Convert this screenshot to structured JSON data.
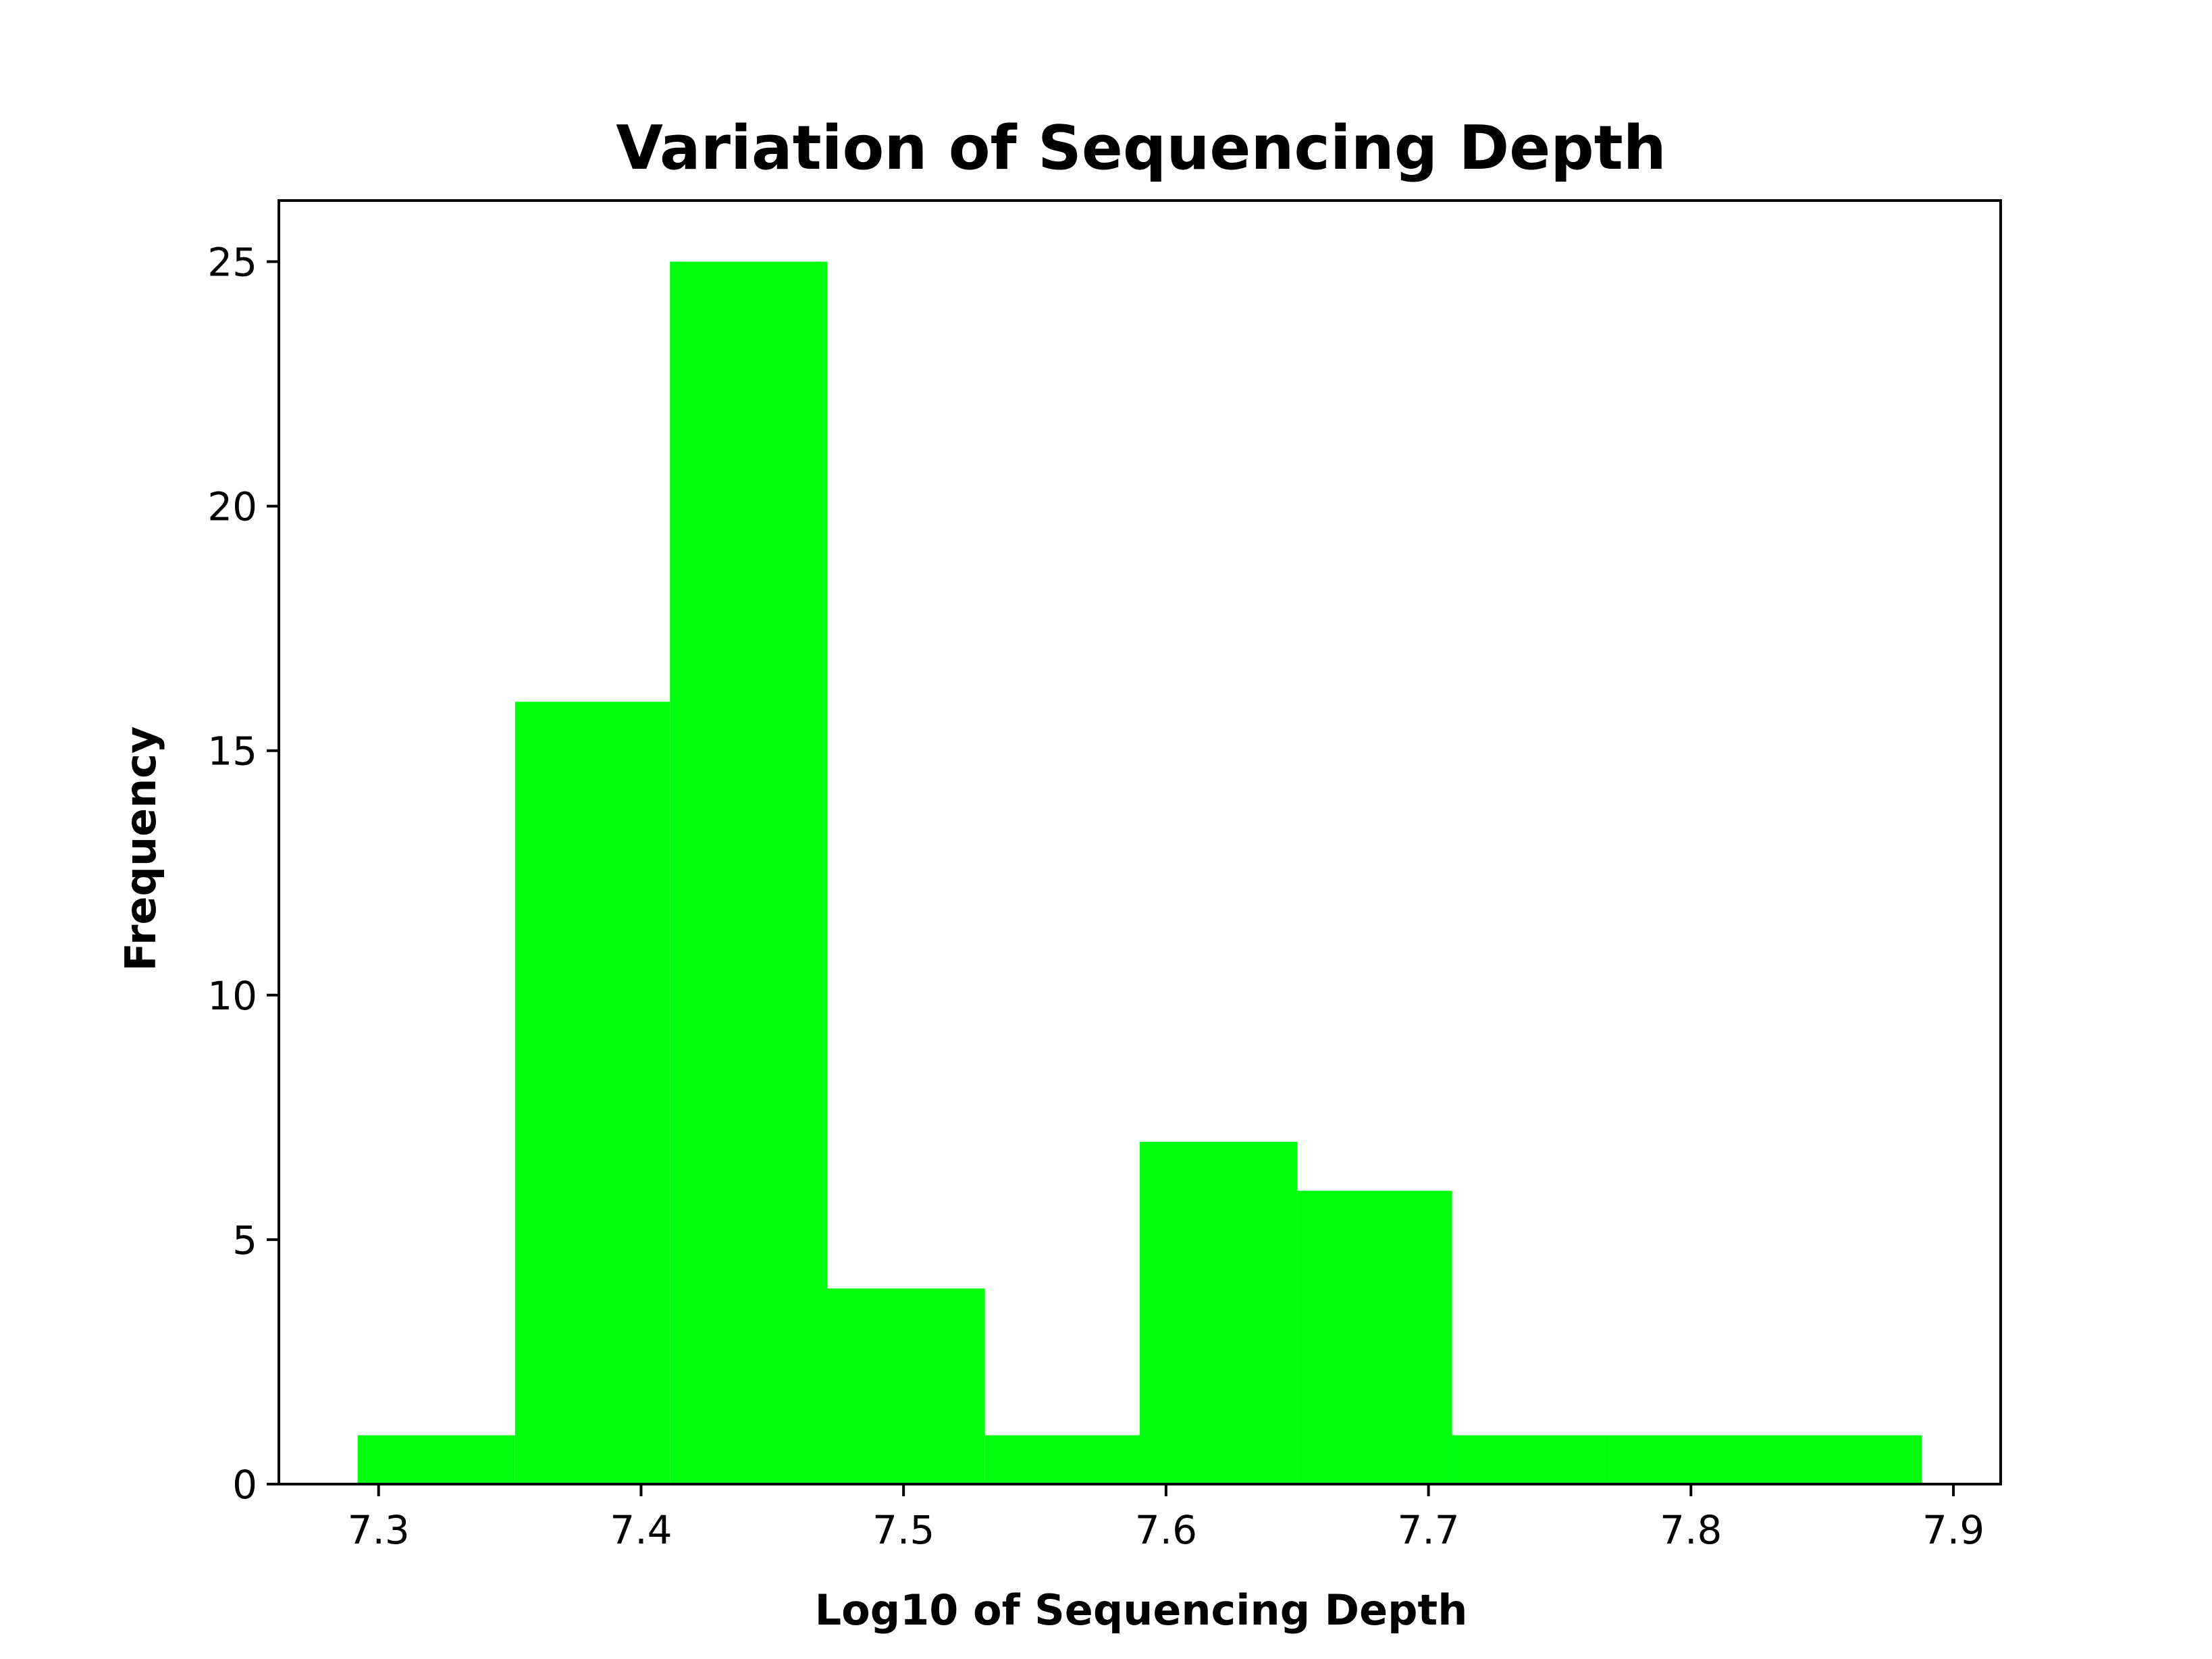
{
  "chart_data": {
    "type": "bar",
    "title": "Variation of Sequencing Depth",
    "xlabel": "Log10 of Sequencing Depth",
    "ylabel": "Frequency",
    "bins": [
      {
        "x0": 7.292,
        "x1": 7.352,
        "count": 1
      },
      {
        "x0": 7.352,
        "x1": 7.411,
        "count": 16
      },
      {
        "x0": 7.411,
        "x1": 7.471,
        "count": 25
      },
      {
        "x0": 7.471,
        "x1": 7.531,
        "count": 4
      },
      {
        "x0": 7.531,
        "x1": 7.59,
        "count": 1
      },
      {
        "x0": 7.59,
        "x1": 7.65,
        "count": 7
      },
      {
        "x0": 7.65,
        "x1": 7.709,
        "count": 6
      },
      {
        "x0": 7.709,
        "x1": 7.769,
        "count": 1
      },
      {
        "x0": 7.769,
        "x1": 7.829,
        "count": 1
      },
      {
        "x0": 7.829,
        "x1": 7.888,
        "count": 1
      }
    ],
    "xlim": [
      7.262,
      7.918
    ],
    "ylim": [
      0,
      26.25
    ],
    "xticks": [
      "7.3",
      "7.4",
      "7.5",
      "7.6",
      "7.7",
      "7.8",
      "7.9"
    ],
    "yticks": [
      "0",
      "5",
      "10",
      "15",
      "20",
      "25"
    ],
    "bar_color": "#00ff0e",
    "grid": false,
    "legend": "none"
  }
}
